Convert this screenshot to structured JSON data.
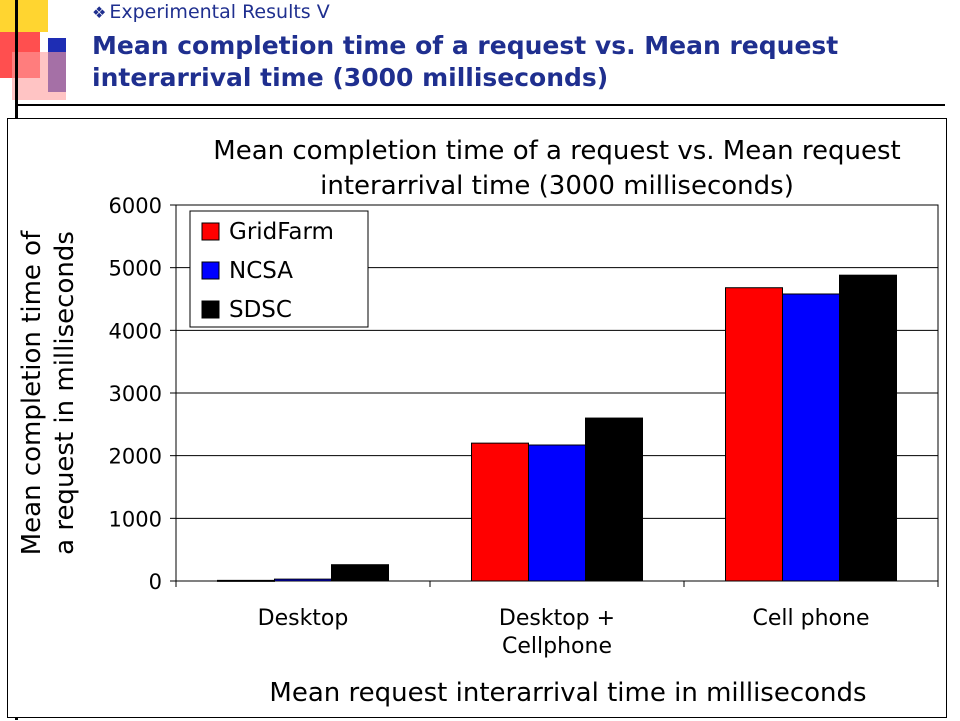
{
  "slide": {
    "bullet_icon": "diamond-bullet-icon",
    "bullet_text": "Experimental Results V",
    "title": "Mean completion time of a request vs. Mean request interarrival time (3000 milliseconds)"
  },
  "colors": {
    "title": "#1f2f8f",
    "deco_red": "#ff2020",
    "deco_blue": "#1e2db4",
    "deco_yellow": "#ffd530"
  },
  "chart_data": {
    "type": "bar",
    "title": "Mean completion time of a request vs. Mean request interarrival time (3000 milliseconds)",
    "title_lines": [
      "Mean completion time of a request vs. Mean request",
      "interarrival time (3000 milliseconds)"
    ],
    "xlabel": "Mean request interarrival time in milliseconds",
    "ylabel": "Mean completion time of a request in milliseconds",
    "ylabel_lines": [
      "Mean completion time of",
      "a request in milliseconds"
    ],
    "categories": [
      "Desktop",
      "Desktop + Cellphone",
      "Cell phone"
    ],
    "category_lines": [
      [
        "Desktop"
      ],
      [
        "Desktop +",
        "Cellphone"
      ],
      [
        "Cell phone"
      ]
    ],
    "series": [
      {
        "name": "GridFarm",
        "color": "#ff0000",
        "values": [
          10,
          2200,
          4680
        ]
      },
      {
        "name": "NCSA",
        "color": "#0000ff",
        "values": [
          30,
          2170,
          4580
        ]
      },
      {
        "name": "SDSC",
        "color": "#000000",
        "values": [
          260,
          2600,
          4880
        ]
      }
    ],
    "ylim": [
      0,
      6000
    ],
    "yticks": [
      "0",
      "1000",
      "2000",
      "3000",
      "4000",
      "5000",
      "6000"
    ],
    "grid": true,
    "legend_position": "top-left"
  }
}
